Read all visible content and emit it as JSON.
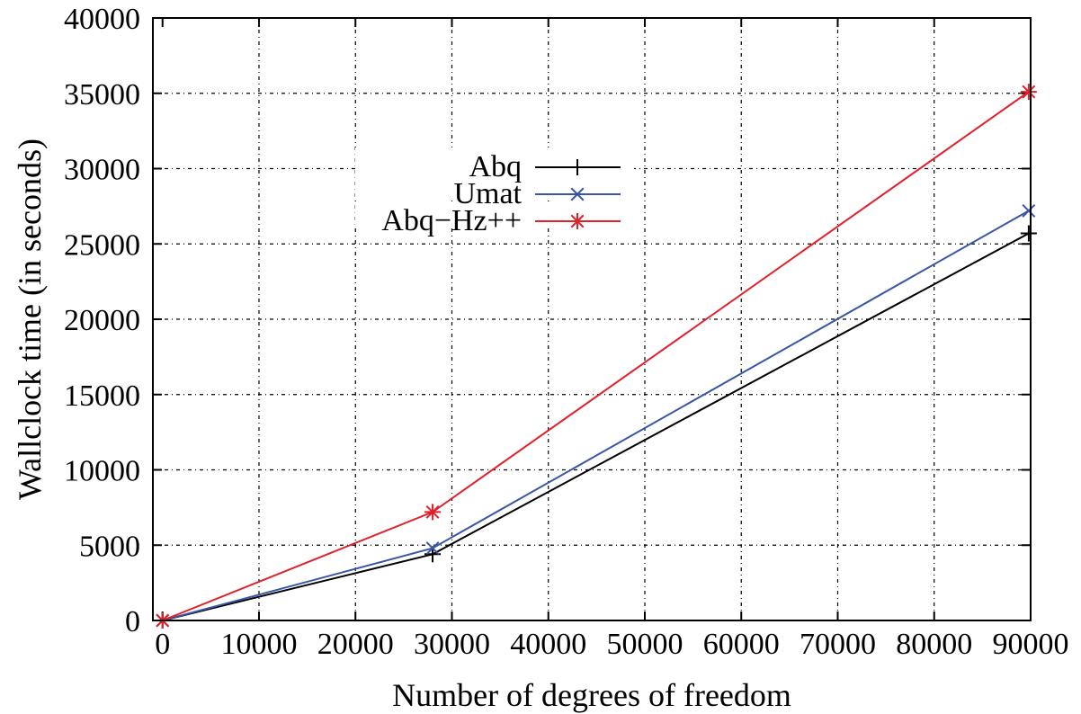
{
  "chart_data": {
    "type": "line",
    "xlabel": "Number of degrees of freedom",
    "ylabel": "Wallclock time (in seconds)",
    "xlim": [
      -1000,
      90000
    ],
    "ylim": [
      0,
      40000
    ],
    "xticks": [
      0,
      10000,
      20000,
      30000,
      40000,
      50000,
      60000,
      70000,
      80000,
      90000
    ],
    "yticks": [
      0,
      5000,
      10000,
      15000,
      20000,
      25000,
      30000,
      35000,
      40000
    ],
    "grid": true,
    "legend_position": "upper-left-center",
    "series": [
      {
        "name": "Abq",
        "color": "#000000",
        "marker": "plus",
        "points": [
          [
            0,
            0
          ],
          [
            28000,
            4400
          ],
          [
            89800,
            25700
          ]
        ]
      },
      {
        "name": "Umat",
        "color": "#3a57a6",
        "marker": "cross",
        "points": [
          [
            0,
            0
          ],
          [
            28000,
            4800
          ],
          [
            89800,
            27200
          ]
        ]
      },
      {
        "name": "Abq−Hz++",
        "color": "#e2202a",
        "marker": "star",
        "points": [
          [
            0,
            0
          ],
          [
            28000,
            7200
          ],
          [
            89800,
            35100
          ]
        ]
      }
    ]
  }
}
